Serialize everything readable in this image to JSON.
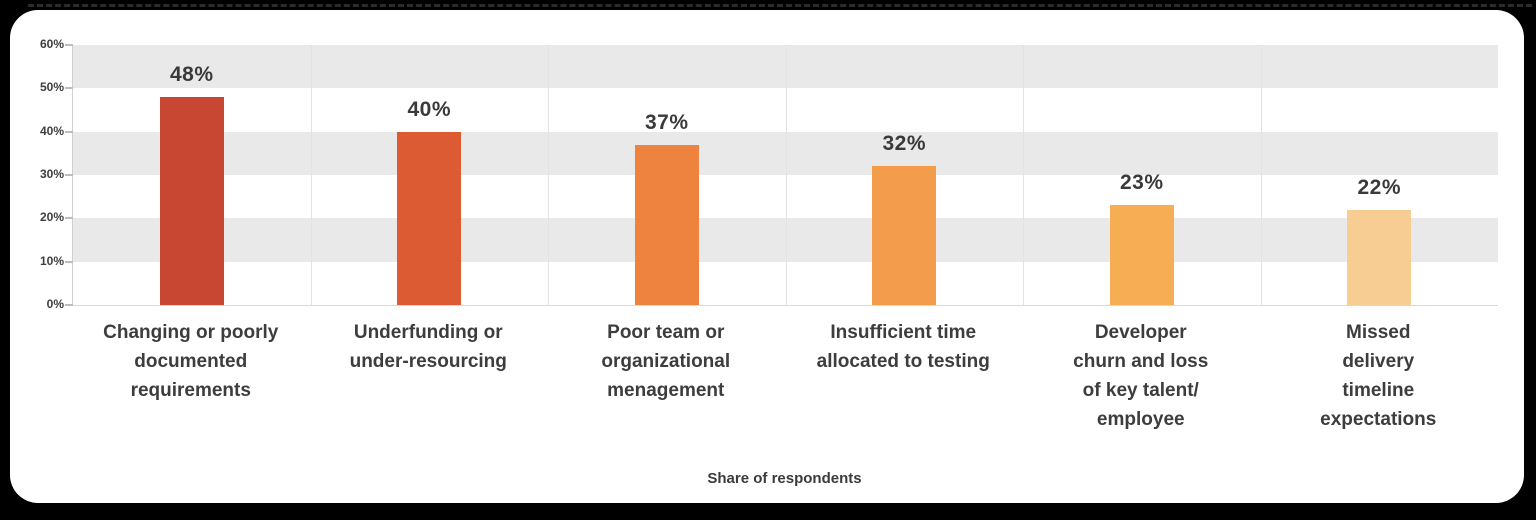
{
  "frame": {
    "background_color": "#000000",
    "card_color": "#ffffff"
  },
  "chart_data": {
    "type": "bar",
    "title": "",
    "xlabel": "Share of respondents",
    "ylabel": "",
    "ylim": [
      0,
      60
    ],
    "yticks": [
      "60%",
      "50%",
      "40%",
      "30%",
      "20%",
      "10%",
      "0%"
    ],
    "grid": "alternating horizontal bands (gray 50-60, 30-40, 10-20) with vertical column separators",
    "legend": "none",
    "band_color": "#e9e9e9",
    "separator_color": "#e3e3e3",
    "categories": [
      "Changing or poorly\ndocumented\nrequirements",
      "Underfunding or\nunder-resourcing",
      "Poor team or\norganizational\nmenagement",
      "Insufficient time\nallocated to testing",
      "Developer\nchurn and loss\nof key talent/\nemployee",
      "Missed\ndelivery\ntimeline\nexpectations"
    ],
    "values": [
      48,
      40,
      37,
      32,
      23,
      22
    ],
    "data_labels": [
      "48%",
      "40%",
      "37%",
      "32%",
      "23%",
      "22%"
    ],
    "bar_colors": [
      "#c74733",
      "#dc5b32",
      "#ee8340",
      "#f39c4c",
      "#f6ad53",
      "#f8cd93"
    ]
  }
}
